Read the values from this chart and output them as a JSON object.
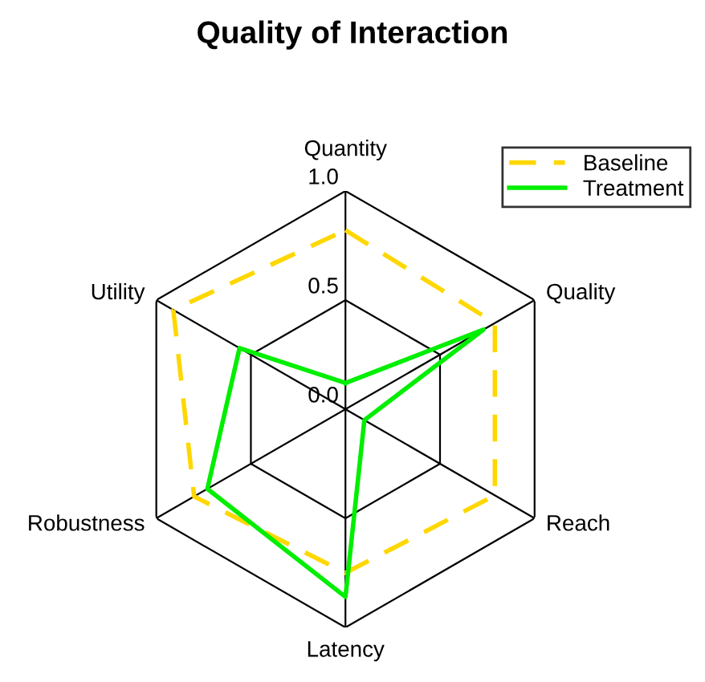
{
  "chart_data": {
    "type": "radar",
    "title": "Quality of Interaction",
    "categories": [
      "Quantity",
      "Quality",
      "Reach",
      "Latency",
      "Robustness",
      "Utility"
    ],
    "series": [
      {
        "name": "Baseline",
        "color": "#ffd700",
        "line_style": "dashed",
        "values": [
          0.82,
          0.79,
          0.79,
          0.75,
          0.8,
          0.91
        ]
      },
      {
        "name": "Treatment",
        "color": "#00ee00",
        "line_style": "solid",
        "values": [
          0.12,
          0.73,
          0.1,
          0.86,
          0.73,
          0.56
        ]
      }
    ],
    "ylim": [
      0,
      1
    ],
    "yticks": [
      {
        "value": 0,
        "label": "0.0"
      },
      {
        "value": 0.5,
        "label": "0.5"
      },
      {
        "value": 1,
        "label": "1.0"
      }
    ],
    "grid": true,
    "legend": "top right",
    "marker": "none"
  }
}
